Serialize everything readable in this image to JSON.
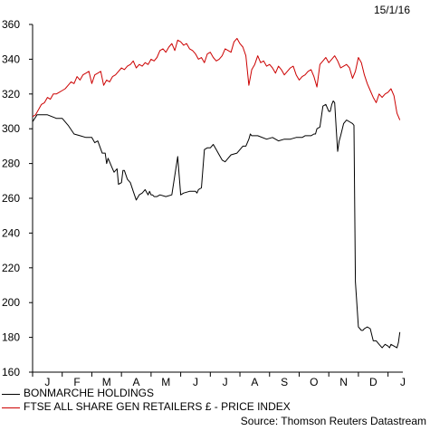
{
  "chart_data": {
    "type": "line",
    "date_label": "15/1/16",
    "source": "Source: Thomson Reuters Datastream",
    "ylim": [
      160,
      360
    ],
    "yticks": [
      160,
      180,
      200,
      220,
      240,
      260,
      280,
      300,
      320,
      340,
      360
    ],
    "xlim": [
      0,
      12.5
    ],
    "x_tick_labels": [
      "J",
      "F",
      "M",
      "A",
      "M",
      "J",
      "J",
      "A",
      "S",
      "O",
      "N",
      "D",
      "J"
    ],
    "grid": false,
    "legend_position": "bottom-left",
    "series": [
      {
        "name": "BONMARCHE HOLDINGS",
        "color": "#000000",
        "x": [
          0,
          0.15,
          0.3,
          0.5,
          0.8,
          1.0,
          1.2,
          1.4,
          1.6,
          1.8,
          2.0,
          2.1,
          2.2,
          2.35,
          2.45,
          2.5,
          2.55,
          2.7,
          2.75,
          2.85,
          2.9,
          3.0,
          3.05,
          3.1,
          3.2,
          3.3,
          3.4,
          3.5,
          3.6,
          3.7,
          3.8,
          3.9,
          3.95,
          4.0,
          4.05,
          4.1,
          4.2,
          4.3,
          4.5,
          4.7,
          4.9,
          5.0,
          5.1,
          5.3,
          5.5,
          5.55,
          5.6,
          5.7,
          5.8,
          5.9,
          6.0,
          6.1,
          6.2,
          6.3,
          6.4,
          6.5,
          6.7,
          6.9,
          7.1,
          7.2,
          7.3,
          7.35,
          7.4,
          7.6,
          7.9,
          8.1,
          8.3,
          8.5,
          8.7,
          8.9,
          9.1,
          9.2,
          9.3,
          9.4,
          9.5,
          9.55,
          9.6,
          9.7,
          9.8,
          9.9,
          10.0,
          10.05,
          10.1,
          10.15,
          10.2,
          10.25,
          10.3,
          10.35,
          10.4,
          10.5,
          10.6,
          10.7,
          10.8,
          10.85,
          10.9,
          11.0,
          11.05,
          11.1,
          11.15,
          11.2,
          11.3,
          11.4,
          11.5,
          11.6,
          11.7,
          11.8,
          11.9,
          12.0,
          12.05,
          12.1,
          12.2,
          12.3,
          12.35,
          12.4
        ],
        "values": [
          304,
          308,
          308,
          308,
          306,
          306,
          302,
          297,
          296,
          295,
          295,
          292,
          293,
          286,
          286,
          280,
          283,
          277,
          275,
          277,
          268,
          269,
          276,
          276,
          271,
          269,
          264,
          259,
          262,
          263,
          265,
          262,
          264,
          262,
          262,
          261,
          261,
          262,
          261,
          262,
          284,
          262,
          263,
          264,
          264,
          263,
          265,
          266,
          288,
          289,
          289,
          291,
          288,
          285,
          282,
          281,
          285,
          286,
          290,
          290,
          294,
          297,
          296,
          296,
          294,
          295,
          293,
          294,
          294,
          295,
          295,
          296,
          296,
          296,
          297,
          297,
          300,
          301,
          313,
          314,
          310,
          310,
          314,
          316,
          315,
          300,
          287,
          293,
          296,
          303,
          305,
          304,
          303,
          302,
          212,
          186,
          185,
          184,
          184,
          185,
          186,
          185,
          178,
          178,
          176,
          174,
          176,
          175,
          174,
          176,
          175,
          174,
          177,
          183
        ]
      },
      {
        "name": "FTSE ALL SHARE GEN RETAILERS £ - PRICE INDEX",
        "color": "#cc0000",
        "x": [
          0,
          0.1,
          0.2,
          0.3,
          0.4,
          0.5,
          0.6,
          0.7,
          0.8,
          0.9,
          1.0,
          1.1,
          1.2,
          1.3,
          1.4,
          1.5,
          1.6,
          1.7,
          1.8,
          1.9,
          2.0,
          2.1,
          2.2,
          2.3,
          2.4,
          2.5,
          2.6,
          2.7,
          2.8,
          2.9,
          3.0,
          3.1,
          3.2,
          3.3,
          3.4,
          3.5,
          3.6,
          3.7,
          3.8,
          3.9,
          4.0,
          4.1,
          4.2,
          4.3,
          4.4,
          4.5,
          4.6,
          4.7,
          4.8,
          4.9,
          5.0,
          5.1,
          5.2,
          5.3,
          5.4,
          5.5,
          5.6,
          5.7,
          5.8,
          5.9,
          6.0,
          6.1,
          6.2,
          6.3,
          6.4,
          6.5,
          6.6,
          6.7,
          6.8,
          6.9,
          7.0,
          7.1,
          7.2,
          7.3,
          7.4,
          7.5,
          7.6,
          7.7,
          7.8,
          7.9,
          8.0,
          8.1,
          8.2,
          8.3,
          8.4,
          8.5,
          8.6,
          8.7,
          8.8,
          8.9,
          9.0,
          9.1,
          9.2,
          9.3,
          9.4,
          9.5,
          9.6,
          9.7,
          9.8,
          9.9,
          10.0,
          10.1,
          10.2,
          10.3,
          10.4,
          10.5,
          10.6,
          10.7,
          10.8,
          10.9,
          11.0,
          11.1,
          11.2,
          11.3,
          11.4,
          11.5,
          11.6,
          11.7,
          11.8,
          11.9,
          12.0,
          12.1,
          12.2,
          12.3,
          12.4
        ],
        "values": [
          307,
          308,
          311,
          314,
          315,
          318,
          317,
          320,
          320,
          321,
          322,
          323,
          325,
          327,
          326,
          330,
          328,
          331,
          332,
          333,
          326,
          331,
          332,
          333,
          325,
          328,
          327,
          330,
          331,
          333,
          335,
          334,
          336,
          337,
          339,
          335,
          337,
          336,
          338,
          337,
          340,
          339,
          341,
          345,
          346,
          344,
          347,
          349,
          345,
          351,
          350,
          348,
          349,
          346,
          345,
          343,
          340,
          341,
          338,
          343,
          344,
          341,
          339,
          340,
          342,
          346,
          345,
          344,
          350,
          352,
          349,
          347,
          342,
          325,
          334,
          337,
          342,
          338,
          339,
          336,
          337,
          335,
          332,
          336,
          334,
          331,
          333,
          335,
          336,
          331,
          328,
          330,
          331,
          333,
          334,
          330,
          324,
          337,
          339,
          341,
          338,
          340,
          342,
          339,
          335,
          336,
          337,
          335,
          329,
          333,
          341,
          338,
          331,
          326,
          322,
          318,
          315,
          320,
          318,
          320,
          321,
          323,
          319,
          309,
          305
        ]
      }
    ]
  }
}
